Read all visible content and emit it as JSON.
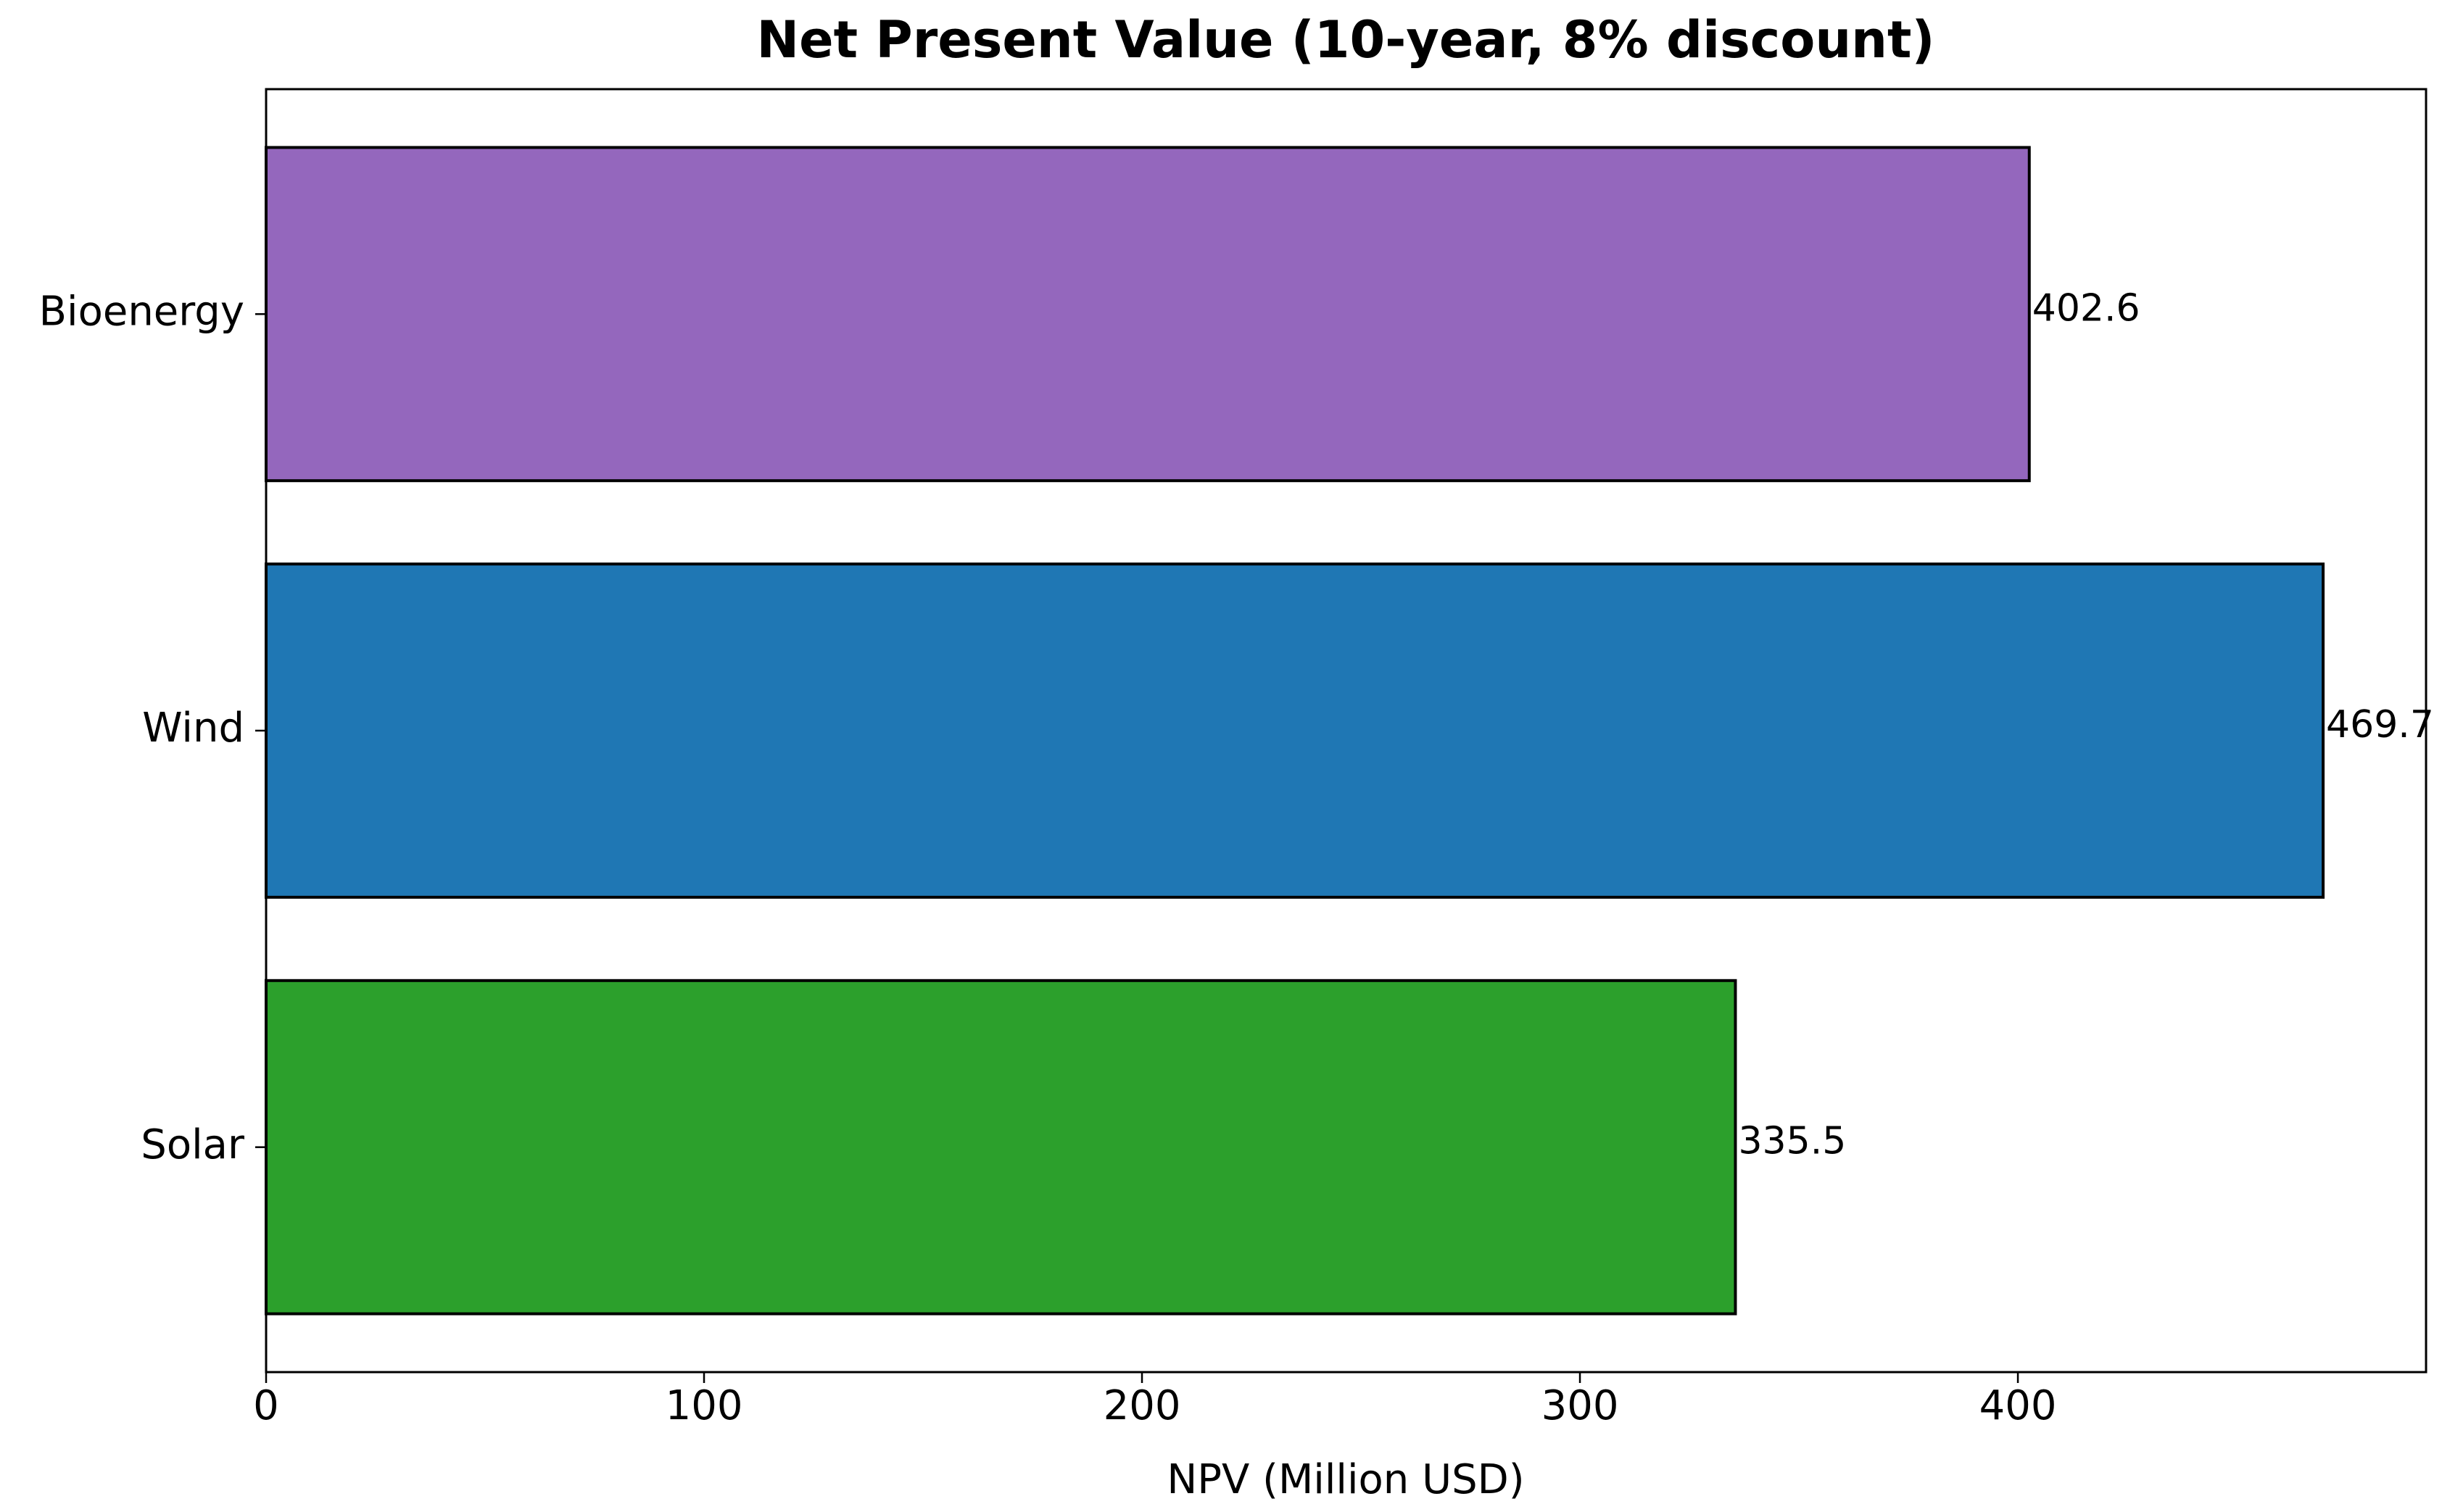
{
  "chart_data": {
    "type": "barh",
    "title": "Net Present Value (10-year, 8% discount)",
    "x_label": "NPV (Million USD)",
    "categories": [
      "Solar",
      "Wind",
      "Bioenergy"
    ],
    "values": [
      335.5,
      469.7,
      402.6
    ],
    "colors": [
      "#2ca02c",
      "#1f77b4",
      "#9467bd"
    ],
    "xlim": [
      0,
      493.2
    ],
    "xticks": [
      0,
      100,
      200,
      300,
      400
    ]
  }
}
